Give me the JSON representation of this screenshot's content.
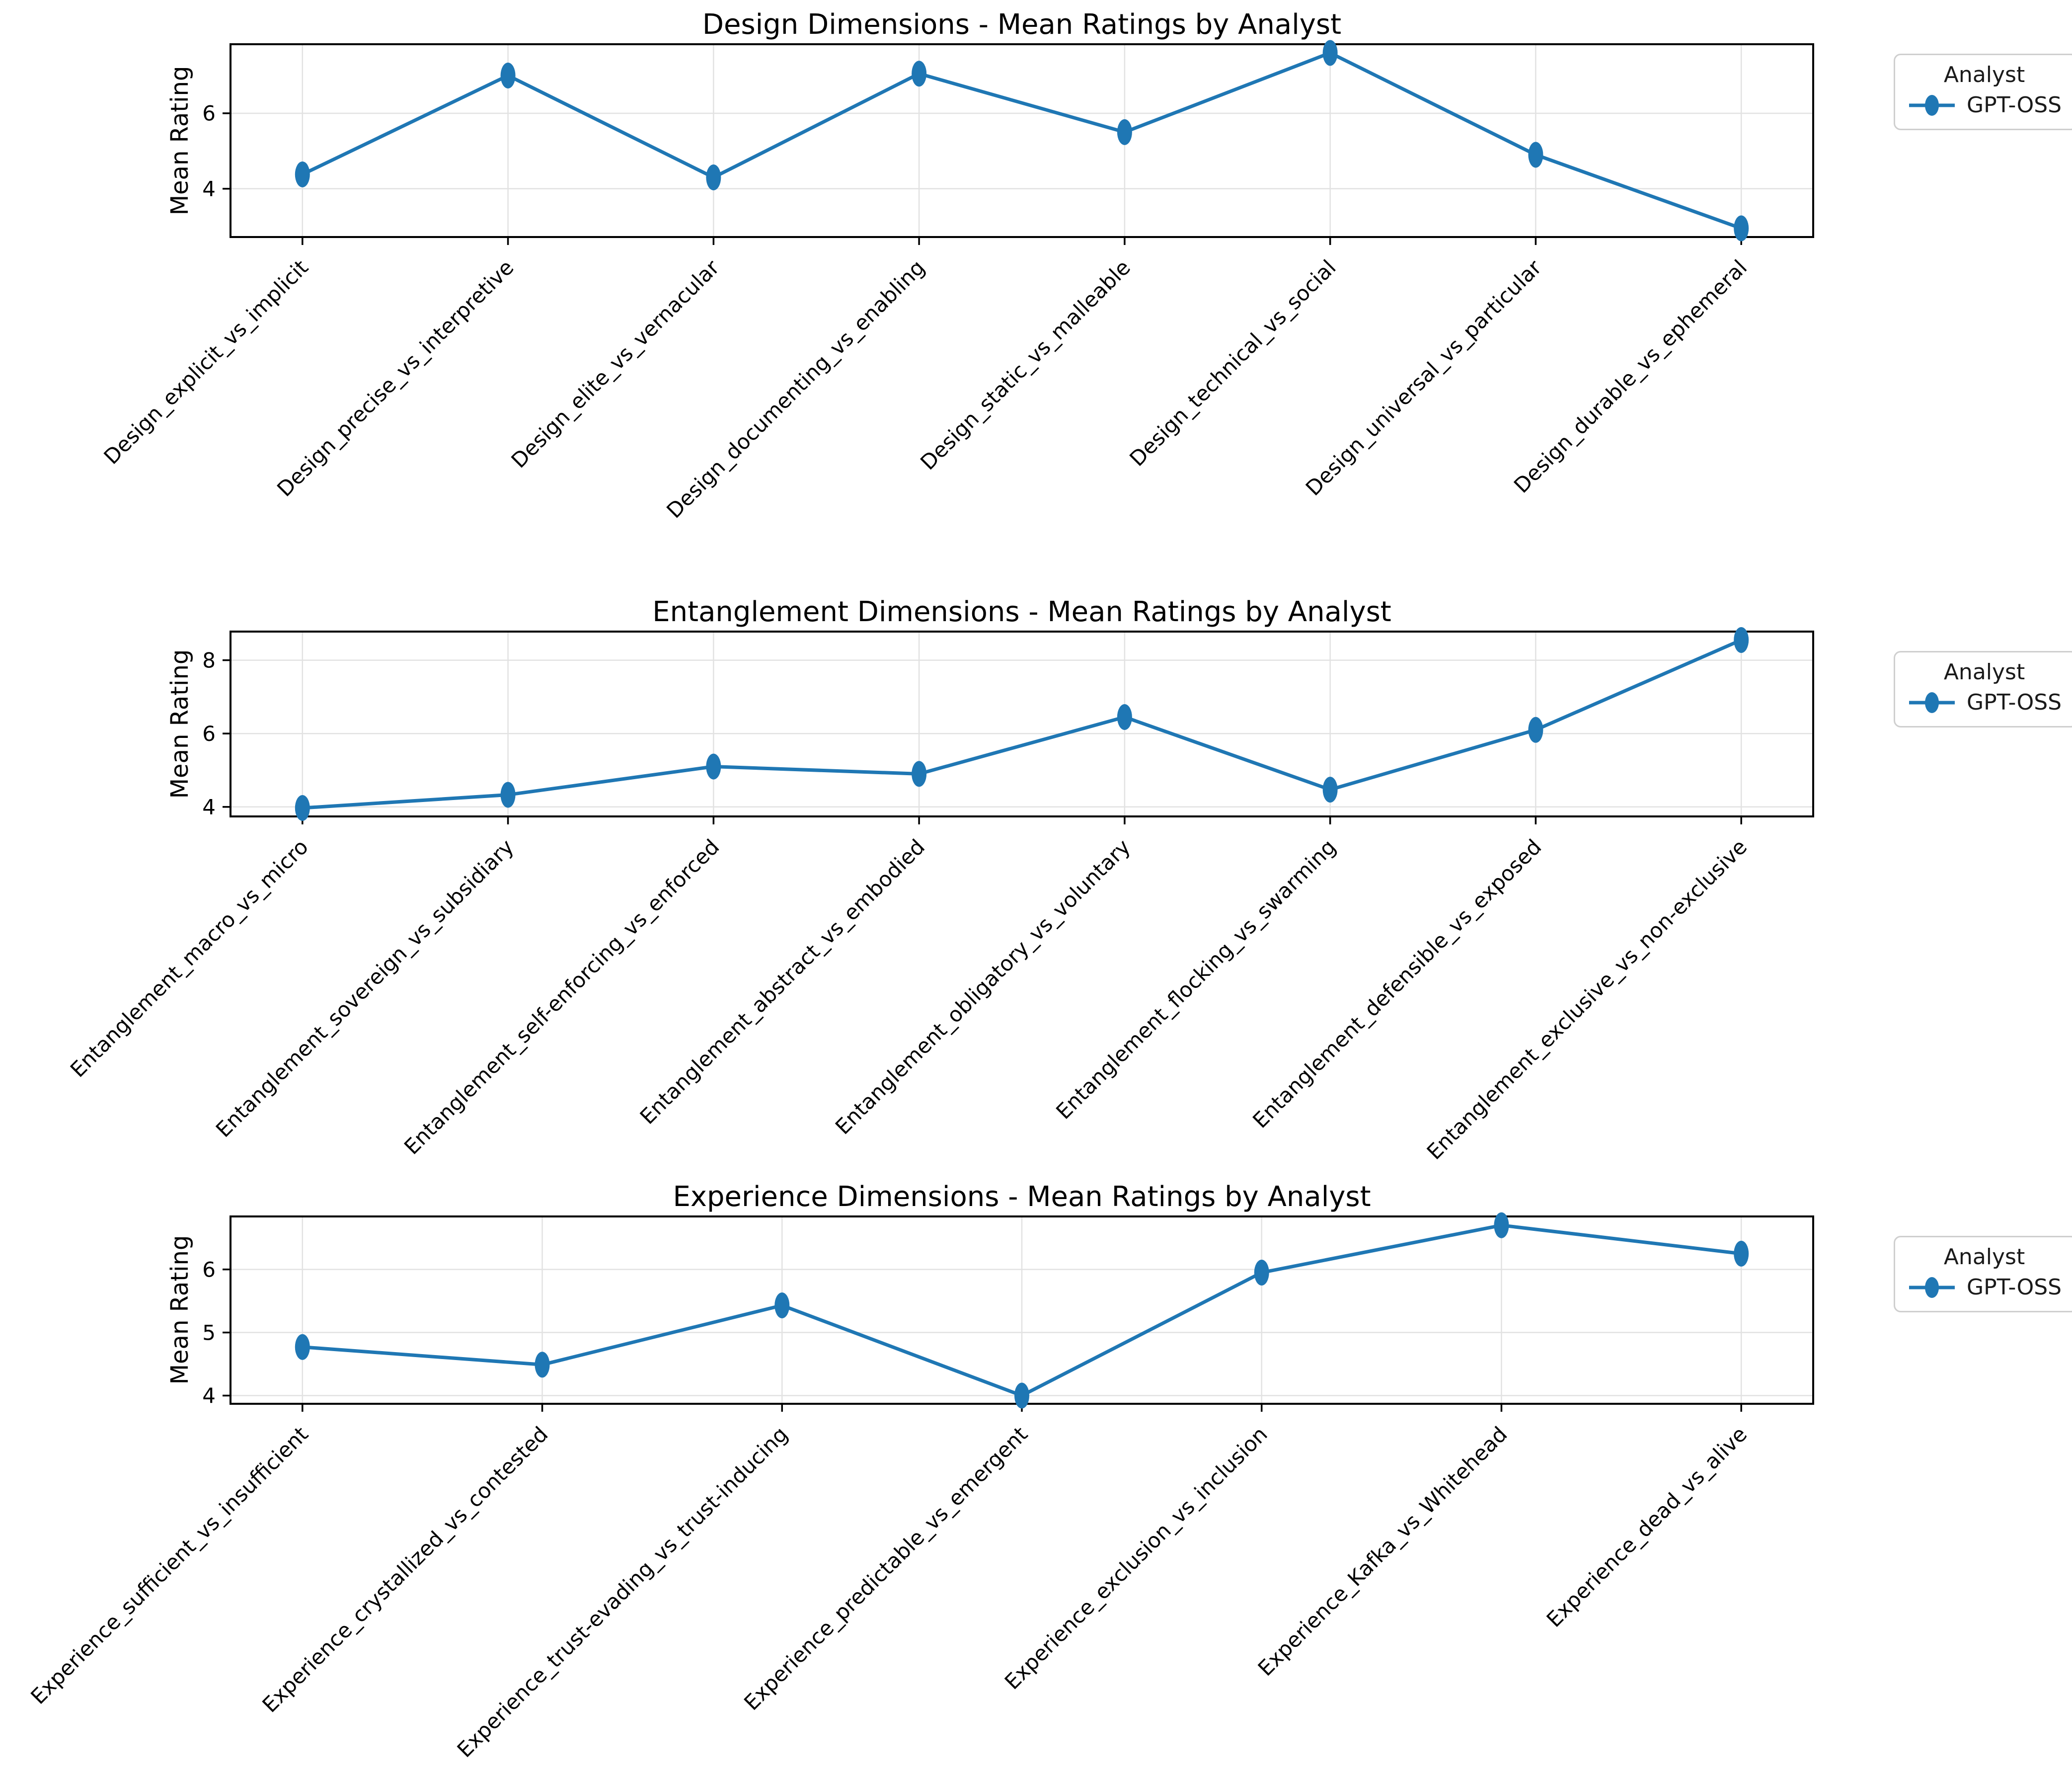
{
  "chart_data": [
    {
      "type": "line",
      "title": "Design Dimensions - Mean Ratings by Analyst",
      "ylabel": "Mean Rating",
      "legend_title": "Analyst",
      "legend_position": "right-top",
      "grid": true,
      "categories": [
        "Design_explicit_vs_implicit",
        "Design_precise_vs_interpretive",
        "Design_elite_vs_vernacular",
        "Design_documenting_vs_enabling",
        "Design_static_vs_malleable",
        "Design_technical_vs_social",
        "Design_universal_vs_particular",
        "Design_durable_vs_ephemeral"
      ],
      "series": [
        {
          "name": "GPT-OSS",
          "color": "#1f77b4",
          "values": [
            4.38,
            7.0,
            4.3,
            7.05,
            5.5,
            7.6,
            4.9,
            2.95
          ]
        }
      ],
      "yticks": [
        4,
        6
      ],
      "ylim": [
        2.72,
        7.83
      ]
    },
    {
      "type": "line",
      "title": "Entanglement Dimensions - Mean Ratings by Analyst",
      "ylabel": "Mean Rating",
      "legend_title": "Analyst",
      "legend_position": "right-top",
      "grid": true,
      "categories": [
        "Entanglement_macro_vs_micro",
        "Entanglement_sovereign_vs_subsidiary",
        "Entanglement_self-enforcing_vs_enforced",
        "Entanglement_abstract_vs_embodied",
        "Entanglement_obligatory_vs_voluntary",
        "Entanglement_flocking_vs_swarming",
        "Entanglement_defensible_vs_exposed",
        "Entanglement_exclusive_vs_non-exclusive"
      ],
      "series": [
        {
          "name": "GPT-OSS",
          "color": "#1f77b4",
          "values": [
            3.97,
            4.33,
            5.1,
            4.9,
            6.45,
            4.47,
            6.1,
            8.55
          ]
        }
      ],
      "yticks": [
        4,
        6,
        8
      ],
      "ylim": [
        3.74,
        8.78
      ]
    },
    {
      "type": "line",
      "title": "Experience Dimensions - Mean Ratings by Analyst",
      "ylabel": "Mean Rating",
      "legend_title": "Analyst",
      "legend_position": "right-top",
      "grid": true,
      "categories": [
        "Experience_sufficient_vs_insufficient",
        "Experience_crystallized_vs_contested",
        "Experience_trust-evading_vs_trust-inducing",
        "Experience_predictable_vs_emergent",
        "Experience_exclusion_vs_inclusion",
        "Experience_Kafka_vs_Whitehead",
        "Experience_dead_vs_alive"
      ],
      "series": [
        {
          "name": "GPT-OSS",
          "color": "#1f77b4",
          "values": [
            4.77,
            4.49,
            5.43,
            4.0,
            5.95,
            6.7,
            6.25
          ]
        }
      ],
      "yticks": [
        4,
        5,
        6
      ],
      "ylim": [
        3.87,
        6.84
      ]
    }
  ]
}
